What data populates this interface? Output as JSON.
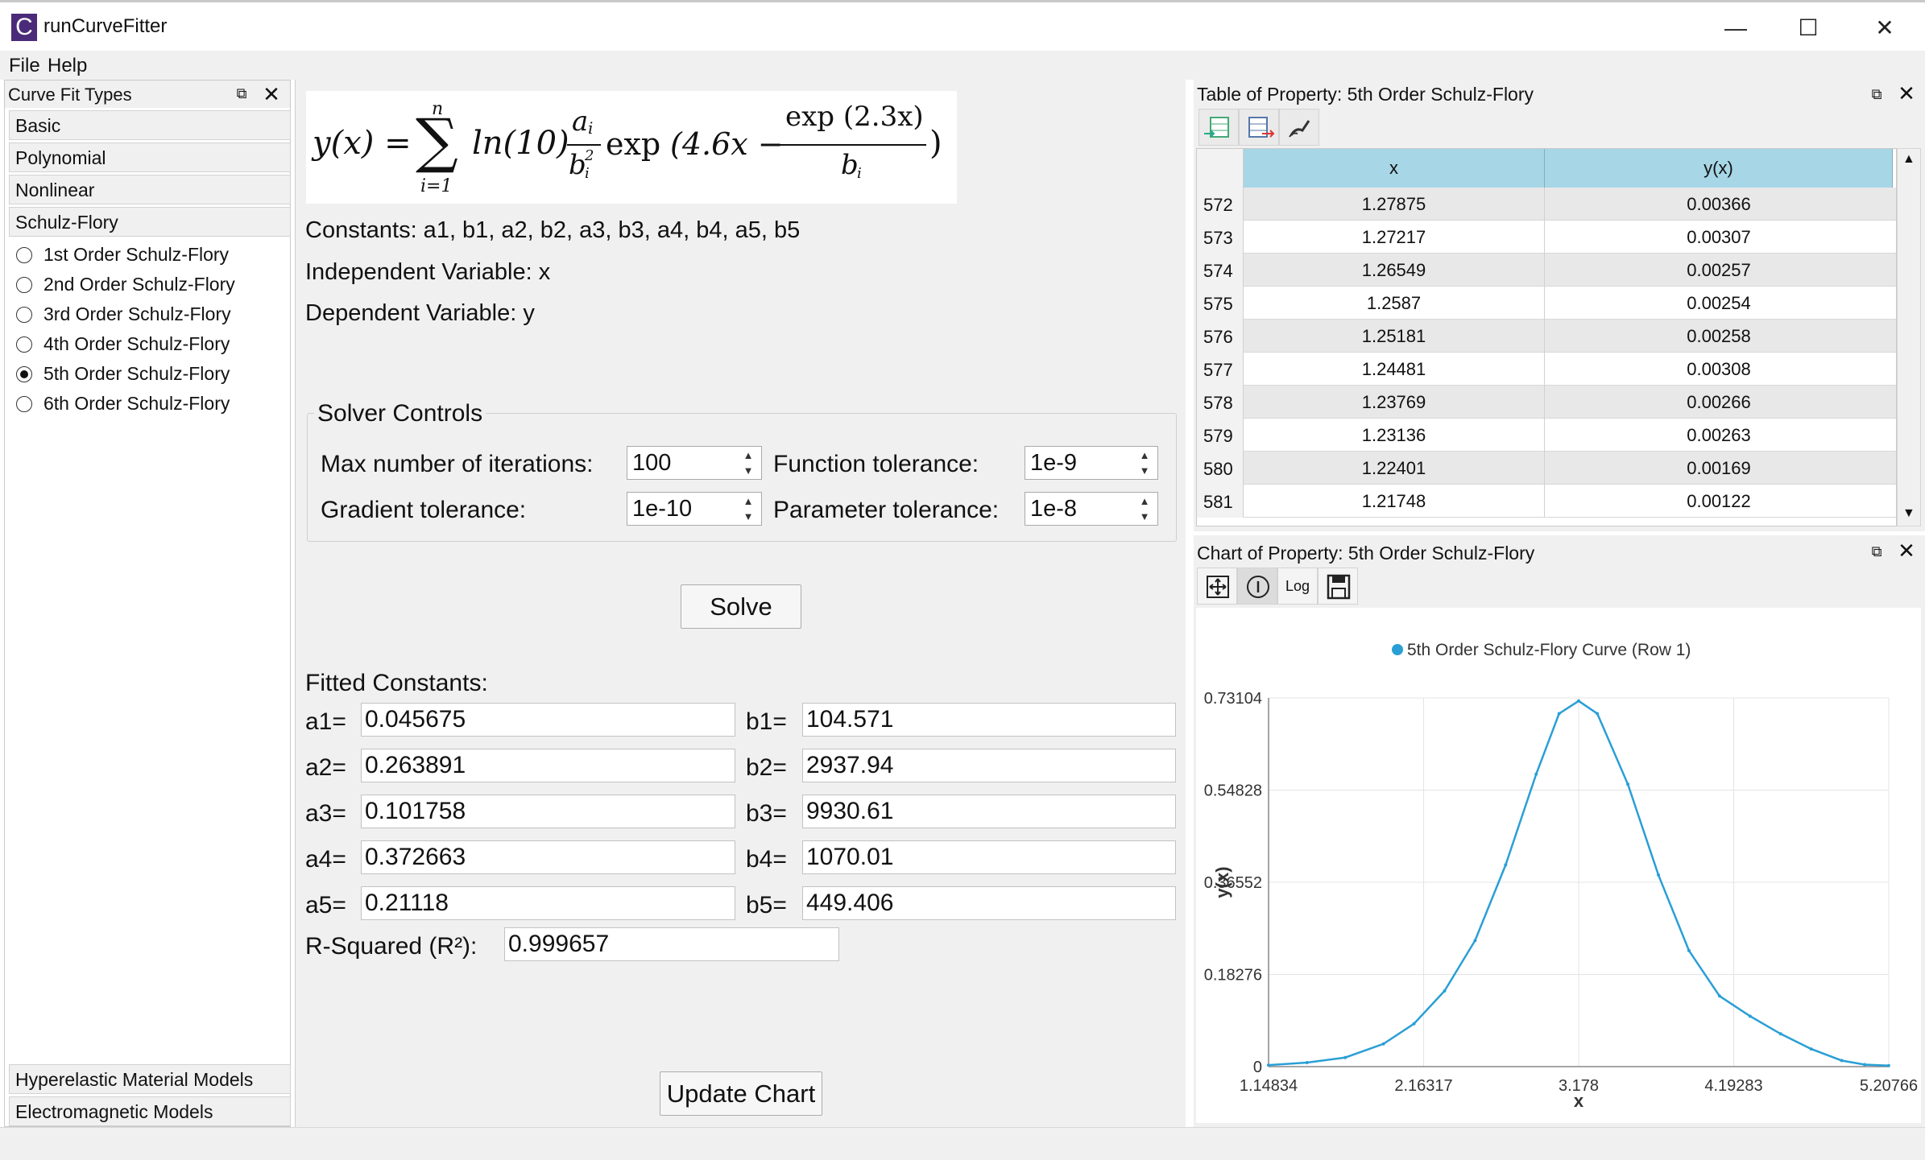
{
  "window": {
    "icon_letter": "C",
    "title": "runCurveFitter",
    "minimize": "—",
    "maximize": "☐",
    "close": "✕"
  },
  "menu": {
    "file": "File",
    "help": "Help"
  },
  "left": {
    "header": "Curve Fit Types",
    "categories": [
      "Basic",
      "Polynomial",
      "Nonlinear",
      "Schulz-Flory"
    ],
    "options": [
      "1st Order Schulz-Flory",
      "2nd Order Schulz-Flory",
      "3rd Order Schulz-Flory",
      "4th Order Schulz-Flory",
      "5th Order Schulz-Flory",
      "6th Order Schulz-Flory"
    ],
    "selected_index": 4,
    "bottom_categories": [
      "Hyperelastic Material Models",
      "Electromagnetic Models"
    ]
  },
  "formula": {
    "lhs": "y(x) =",
    "upper": "n",
    "lower": "i=1",
    "ln": "ln(10)",
    "num": "a",
    "den": "b",
    "sub": "i",
    "sup": "2",
    "exp": "exp",
    "inner": "(4.6x −",
    "exp_num": "exp (2.3x)",
    "exp_den": "b",
    "close": ")"
  },
  "info": {
    "constants": "Constants: a1, b1, a2, b2, a3, b3, a4, b4, a5, b5",
    "independent": "Independent Variable: x",
    "dependent": "Dependent Variable: y"
  },
  "solver": {
    "title": "Solver Controls",
    "max_iter_label": "Max number of iterations:",
    "max_iter": "100",
    "func_tol_label": "Function tolerance:",
    "func_tol": "1e-9",
    "grad_tol_label": "Gradient tolerance:",
    "grad_tol": "1e-10",
    "param_tol_label": "Parameter tolerance:",
    "param_tol": "1e-8",
    "solve": "Solve"
  },
  "fitted": {
    "title": "Fitted Constants:",
    "a": [
      {
        "label": "a1=",
        "value": "0.045675"
      },
      {
        "label": "a2=",
        "value": "0.263891"
      },
      {
        "label": "a3=",
        "value": "0.101758"
      },
      {
        "label": "a4=",
        "value": "0.372663"
      },
      {
        "label": "a5=",
        "value": "0.21118"
      }
    ],
    "b": [
      {
        "label": "b1=",
        "value": "104.571"
      },
      {
        "label": "b2=",
        "value": "2937.94"
      },
      {
        "label": "b3=",
        "value": "9930.61"
      },
      {
        "label": "b4=",
        "value": "1070.01"
      },
      {
        "label": "b5=",
        "value": "449.406"
      }
    ],
    "r2_label": "R-Squared (R²):",
    "r2": "0.999657",
    "update": "Update Chart"
  },
  "table": {
    "title": "Table of Property: 5th Order Schulz-Flory",
    "headers": [
      "x",
      "y(x)"
    ],
    "rows": [
      {
        "n": "572",
        "x": "1.27875",
        "y": "0.00366"
      },
      {
        "n": "573",
        "x": "1.27217",
        "y": "0.00307"
      },
      {
        "n": "574",
        "x": "1.26549",
        "y": "0.00257"
      },
      {
        "n": "575",
        "x": "1.2587",
        "y": "0.00254"
      },
      {
        "n": "576",
        "x": "1.25181",
        "y": "0.00258"
      },
      {
        "n": "577",
        "x": "1.24481",
        "y": "0.00308"
      },
      {
        "n": "578",
        "x": "1.23769",
        "y": "0.00266"
      },
      {
        "n": "579",
        "x": "1.23136",
        "y": "0.00263"
      },
      {
        "n": "580",
        "x": "1.22401",
        "y": "0.00169"
      },
      {
        "n": "581",
        "x": "1.21748",
        "y": "0.00122"
      }
    ]
  },
  "chart_panel": {
    "title": "Chart of Property: 5th Order Schulz-Flory",
    "log_label": "Log"
  },
  "chart_data": {
    "type": "line",
    "title": "",
    "legend": [
      "5th Order Schulz-Flory Curve (Row 1)"
    ],
    "legend_position": "top-center",
    "xlabel": "x",
    "ylabel": "y(x)",
    "xlim": [
      1.14834,
      5.20766
    ],
    "ylim": [
      0,
      0.73104
    ],
    "xticks": [
      "1.14834",
      "2.16317",
      "3.178",
      "4.19283",
      "5.20766"
    ],
    "yticks": [
      "0",
      "0.18276",
      "0.36552",
      "0.54828",
      "0.73104"
    ],
    "grid": true,
    "color": "#2a9fd6",
    "x": [
      1.148,
      1.4,
      1.65,
      1.9,
      2.1,
      2.3,
      2.5,
      2.7,
      2.9,
      3.05,
      3.178,
      3.3,
      3.5,
      3.7,
      3.9,
      4.1,
      4.3,
      4.5,
      4.7,
      4.9,
      5.05,
      5.207
    ],
    "y": [
      0.003,
      0.008,
      0.018,
      0.045,
      0.085,
      0.15,
      0.25,
      0.4,
      0.58,
      0.7,
      0.725,
      0.7,
      0.56,
      0.38,
      0.23,
      0.14,
      0.1,
      0.065,
      0.035,
      0.012,
      0.004,
      0.002
    ]
  }
}
